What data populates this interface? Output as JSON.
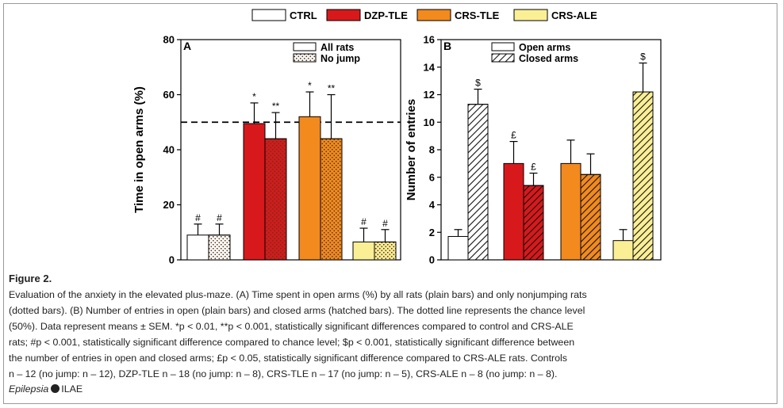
{
  "figure_legend": [
    {
      "label": "CTRL",
      "color": "#ffffff"
    },
    {
      "label": "DZP-TLE",
      "color": "#d7191c"
    },
    {
      "label": "CRS-TLE",
      "color": "#f28a1e"
    },
    {
      "label": "CRS-ALE",
      "color": "#fbef96"
    }
  ],
  "chart_data": [
    {
      "type": "bar",
      "panel_label": "A",
      "ylabel": "Time in open arms (%)",
      "ylim": [
        0,
        80
      ],
      "yticks": [
        0,
        20,
        40,
        60,
        80
      ],
      "chance_level": 50,
      "legend": [
        "All rats",
        "No jump"
      ],
      "legend_placement": "top-right",
      "groups": [
        "CTRL",
        "DZP-TLE",
        "CRS-TLE",
        "CRS-ALE"
      ],
      "series": [
        {
          "name": "All rats",
          "pattern": "plain",
          "values": [
            9,
            49.5,
            52,
            6.5
          ],
          "errors": [
            4,
            7.5,
            9,
            5
          ],
          "labels": [
            "#",
            "*",
            "*",
            "#"
          ]
        },
        {
          "name": "No jump",
          "pattern": "dotted",
          "values": [
            9,
            44,
            44,
            6.5
          ],
          "errors": [
            4,
            9.5,
            16,
            4.5
          ],
          "labels": [
            "#",
            "**",
            "**",
            "#"
          ]
        }
      ]
    },
    {
      "type": "bar",
      "panel_label": "B",
      "ylabel": "Number of entries",
      "ylim": [
        0,
        16
      ],
      "yticks": [
        0,
        2,
        4,
        6,
        8,
        10,
        12,
        14,
        16
      ],
      "legend": [
        "Open arms",
        "Closed arms"
      ],
      "legend_placement": "top-left",
      "groups": [
        "CTRL",
        "DZP-TLE",
        "CRS-TLE",
        "CRS-ALE"
      ],
      "series": [
        {
          "name": "Open arms",
          "pattern": "plain",
          "values": [
            1.7,
            7,
            7,
            1.4
          ],
          "errors": [
            0.5,
            1.6,
            1.7,
            0.8
          ],
          "labels": [
            "",
            "£",
            "",
            ""
          ]
        },
        {
          "name": "Closed arms",
          "pattern": "hatched",
          "values": [
            11.3,
            5.4,
            6.2,
            12.2
          ],
          "errors": [
            1.1,
            0.9,
            1.5,
            2.1
          ],
          "labels": [
            "$",
            "£",
            "",
            "$"
          ]
        }
      ]
    }
  ],
  "caption": {
    "title": "Figure 2.",
    "lines": [
      "Evaluation of the anxiety in the elevated plus-maze. (A) Time spent in open arms (%) by all rats (plain bars) and only nonjumping rats",
      "(dotted bars). (B) Number of entries in open (plain bars) and closed arms (hatched bars). The dotted line represents the chance level",
      "(50%). Data represent means ± SEM. *p < 0.01, **p < 0.001, statistically significant differences compared to control and CRS-ALE",
      "rats; #p < 0.001, statistically significant difference compared to chance level; $p < 0.001, statistically significant difference between",
      "the number of entries in open and closed arms; £p < 0.05, statistically significant difference compared to CRS-ALE rats. Controls",
      "n – 12 (no jump: n – 12), DZP-TLE n – 18 (no jump: n – 8), CRS-TLE n – 17 (no jump: n – 5), CRS-ALE n – 8 (no jump: n – 8)."
    ],
    "journal": "Epilepsia",
    "society": "ILAE"
  }
}
